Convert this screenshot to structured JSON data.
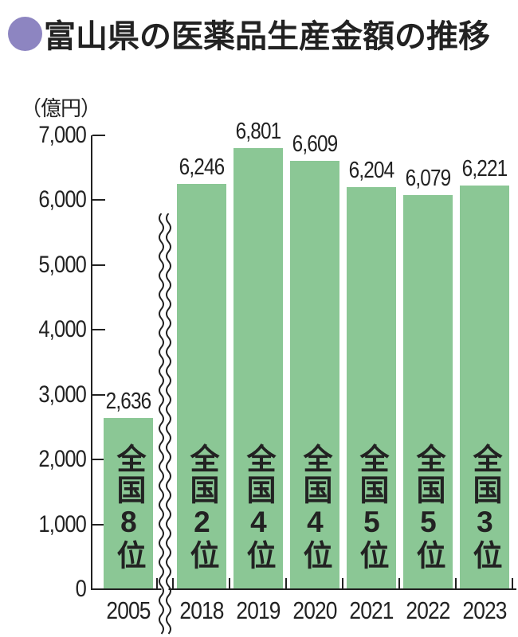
{
  "title": "富山県の医薬品生産金額の推移",
  "chart_data": {
    "type": "bar",
    "title": "富山県の医薬品生産金額の推移",
    "unit_label": "（億円）",
    "ylabel": "億円",
    "xlabel": "",
    "categories": [
      "2005",
      "2018",
      "2019",
      "2020",
      "2021",
      "2022",
      "2023"
    ],
    "values": [
      2636,
      6246,
      6801,
      6609,
      6204,
      6079,
      6221
    ],
    "value_labels": [
      "2,636",
      "6,246",
      "6,801",
      "6,609",
      "6,204",
      "6,079",
      "6,221"
    ],
    "rank_labels": [
      "全国8位",
      "全国2位",
      "全国4位",
      "全国4位",
      "全国5位",
      "全国5位",
      "全国3位"
    ],
    "ylim": [
      0,
      7000
    ],
    "y_tick_values": [
      0,
      1000,
      2000,
      3000,
      4000,
      5000,
      6000,
      7000
    ],
    "y_tick_labels": [
      "0",
      "1,000",
      "2,000",
      "3,000",
      "4,000",
      "5,000",
      "6,000",
      "7,000"
    ],
    "axis_break": {
      "between": [
        "2005",
        "2018"
      ],
      "style": "double-wavy-line"
    },
    "grid": false,
    "legend": false,
    "colors": {
      "bar": "#8bc795",
      "text": "#222222",
      "axis": "#222222",
      "bullet": "#8d85c1",
      "background": "#ffffff"
    }
  }
}
